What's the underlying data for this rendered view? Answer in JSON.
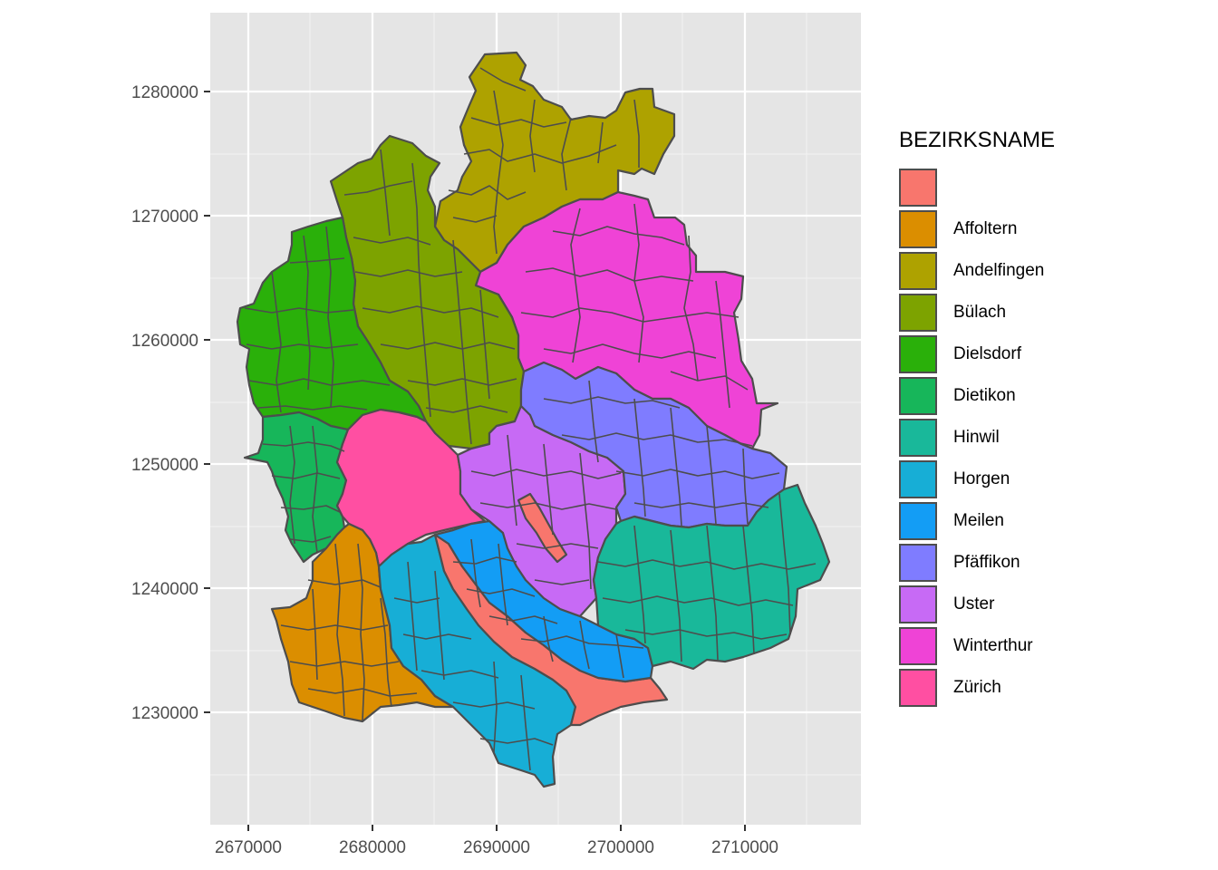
{
  "chart_data": {
    "type": "map",
    "x_ticks": [
      "2670000",
      "2680000",
      "2690000",
      "2700000",
      "2710000"
    ],
    "y_ticks": [
      "1280000",
      "1270000",
      "1260000",
      "1250000",
      "1240000",
      "1230000"
    ],
    "grid": true,
    "panel_background": "#e5e5e5",
    "legend": {
      "title": "BEZIRKSNAME",
      "placement": "right",
      "entries": [
        {
          "label": "",
          "color": "#F8766D"
        },
        {
          "label": "Affoltern",
          "color": "#DB8E00"
        },
        {
          "label": "Andelfingen",
          "color": "#AEA200"
        },
        {
          "label": "Bülach",
          "color": "#7DA300"
        },
        {
          "label": "Dielsdorf",
          "color": "#2AB00A"
        },
        {
          "label": "Dietikon",
          "color": "#17B65A"
        },
        {
          "label": "Hinwil",
          "color": "#19B89A"
        },
        {
          "label": "Horgen",
          "color": "#17AED6"
        },
        {
          "label": "Meilen",
          "color": "#139DF5"
        },
        {
          "label": "Pfäffikon",
          "color": "#7F7CFF"
        },
        {
          "label": "Uster",
          "color": "#C76AF5"
        },
        {
          "label": "Winterthur",
          "color": "#EF43D6"
        },
        {
          "label": "Zürich",
          "color": "#FF4FA2"
        }
      ]
    }
  }
}
